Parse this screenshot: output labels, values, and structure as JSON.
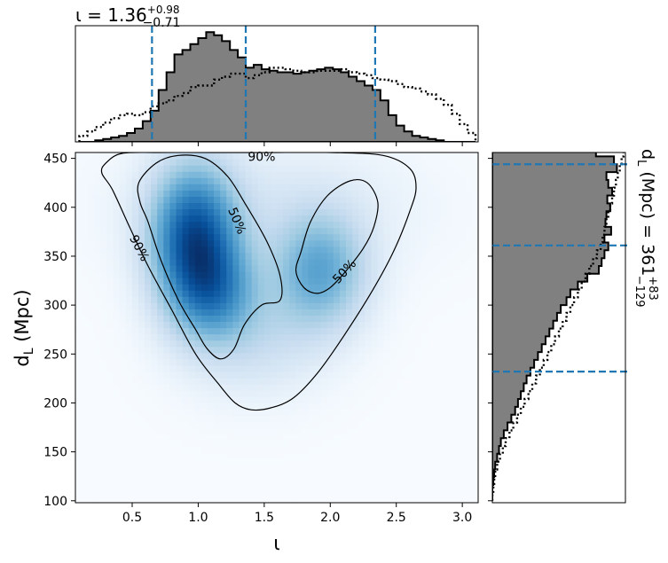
{
  "chart_data": [
    {
      "type": "heatmap",
      "panel": "joint",
      "xlabel": "ι",
      "ylabel": "d_L (Mpc)",
      "xlim": [
        0.07,
        3.12
      ],
      "ylim": [
        98,
        456
      ],
      "x_ticks": [
        "0.5",
        "1.0",
        "1.5",
        "2.0",
        "2.5",
        "3.0"
      ],
      "y_ticks": [
        "100",
        "150",
        "200",
        "250",
        "300",
        "350",
        "400",
        "450"
      ],
      "colormap": "Blues",
      "density_components": [
        {
          "x": 0.97,
          "y": 370,
          "sx": 0.22,
          "sy": 48,
          "w": 1.0
        },
        {
          "x": 1.12,
          "y": 315,
          "sx": 0.22,
          "sy": 35,
          "w": 0.55
        },
        {
          "x": 1.92,
          "y": 335,
          "sx": 0.24,
          "sy": 40,
          "w": 0.55
        },
        {
          "x": 1.42,
          "y": 270,
          "sx": 0.35,
          "sy": 40,
          "w": 0.18
        },
        {
          "x": 1.55,
          "y": 400,
          "sx": 0.7,
          "sy": 45,
          "w": 0.1
        }
      ],
      "contours": [
        {
          "level": "90%",
          "points": [
            [
              0.3,
              445
            ],
            [
              0.42,
              455
            ],
            [
              0.7,
              456
            ],
            [
              1.1,
              456
            ],
            [
              1.5,
              456
            ],
            [
              2.0,
              456
            ],
            [
              2.4,
              453
            ],
            [
              2.6,
              440
            ],
            [
              2.65,
              420
            ],
            [
              2.6,
              395
            ],
            [
              2.48,
              355
            ],
            [
              2.32,
              315
            ],
            [
              2.1,
              268
            ],
            [
              1.9,
              230
            ],
            [
              1.72,
              205
            ],
            [
              1.55,
              195
            ],
            [
              1.4,
              193
            ],
            [
              1.28,
              200
            ],
            [
              1.15,
              220
            ],
            [
              0.98,
              250
            ],
            [
              0.8,
              295
            ],
            [
              0.62,
              340
            ],
            [
              0.48,
              380
            ],
            [
              0.35,
              418
            ],
            [
              0.27,
              435
            ]
          ]
        },
        {
          "level": "50%",
          "points": [
            [
              0.55,
              425
            ],
            [
              0.68,
              445
            ],
            [
              0.85,
              453
            ],
            [
              1.05,
              450
            ],
            [
              1.22,
              432
            ],
            [
              1.35,
              405
            ],
            [
              1.52,
              365
            ],
            [
              1.62,
              330
            ],
            [
              1.62,
              305
            ],
            [
              1.48,
              300
            ],
            [
              1.35,
              280
            ],
            [
              1.27,
              255
            ],
            [
              1.17,
              245
            ],
            [
              1.07,
              255
            ],
            [
              0.98,
              275
            ],
            [
              0.85,
              305
            ],
            [
              0.72,
              345
            ],
            [
              0.62,
              385
            ],
            [
              0.56,
              405
            ]
          ]
        },
        {
          "level": "50%",
          "points": [
            [
              1.78,
              355
            ],
            [
              1.85,
              385
            ],
            [
              1.98,
              412
            ],
            [
              2.15,
              427
            ],
            [
              2.28,
              425
            ],
            [
              2.36,
              405
            ],
            [
              2.33,
              380
            ],
            [
              2.25,
              358
            ],
            [
              2.12,
              335
            ],
            [
              2.0,
              318
            ],
            [
              1.9,
              312
            ],
            [
              1.8,
              318
            ],
            [
              1.74,
              335
            ]
          ]
        }
      ],
      "contour_labels": [
        {
          "text": "90%",
          "x": 1.48,
          "y": 451,
          "rot": 0
        },
        {
          "text": "90%",
          "x": 0.55,
          "y": 358,
          "rot": 62
        },
        {
          "text": "50%",
          "x": 1.29,
          "y": 386,
          "rot": 67
        },
        {
          "text": "50%",
          "x": 2.11,
          "y": 334,
          "rot": -47
        }
      ]
    },
    {
      "type": "histogram",
      "panel": "top-marginal",
      "title_prefix": "ι = 1.36",
      "title_sup": "+0.98",
      "title_sub": "−0.71",
      "xlim": [
        0.07,
        3.12
      ],
      "bin_start": 0.1,
      "bin_width": 0.06,
      "series": [
        {
          "name": "",
          "style": "filled-step",
          "color": "#808080",
          "values": [
            0,
            0,
            1,
            2,
            3,
            4,
            6,
            9,
            14,
            21,
            35,
            47,
            59,
            62,
            66,
            70,
            74,
            72,
            68,
            62,
            57,
            50,
            52,
            49,
            48,
            47,
            47,
            46,
            47,
            48,
            49,
            50,
            49,
            47,
            44,
            41,
            38,
            35,
            28,
            18,
            11,
            7,
            4,
            3,
            2,
            1,
            0,
            0,
            0,
            0
          ]
        },
        {
          "name": "",
          "style": "dotted-step",
          "color": "#000000",
          "values": [
            4,
            7,
            10,
            13,
            16,
            18,
            19,
            18,
            20,
            24,
            26,
            28,
            31,
            33,
            37,
            38,
            38,
            42,
            44,
            46,
            46,
            43,
            45,
            47,
            50,
            50,
            49,
            48,
            47,
            47,
            48,
            48,
            48,
            49,
            47,
            46,
            45,
            43,
            42,
            41,
            39,
            37,
            36,
            34,
            32,
            29,
            25,
            19,
            12,
            6
          ]
        }
      ],
      "vlines": [
        0.65,
        1.36,
        2.34
      ]
    },
    {
      "type": "histogram",
      "panel": "right-marginal",
      "orientation": "horizontal",
      "label_prefix": "d",
      "label_sub": "L",
      "label_mid": " (Mpc) = 361",
      "label_sup": "+83",
      "label_sub2": "−129",
      "ylim": [
        98,
        456
      ],
      "bin_start": 100,
      "bin_width": 8,
      "series": [
        {
          "name": "",
          "style": "filled-step",
          "color": "#808080",
          "values": [
            0,
            0,
            1,
            2,
            3,
            5,
            7,
            9,
            12,
            16,
            20,
            24,
            27,
            30,
            33,
            36,
            40,
            44,
            48,
            52,
            56,
            60,
            64,
            68,
            72,
            78,
            82,
            90,
            100,
            112,
            115,
            118,
            122,
            118,
            125,
            119,
            120,
            124,
            121,
            126,
            122,
            120,
            131,
            128,
            109
          ]
        },
        {
          "name": "",
          "style": "dotted-step",
          "color": "#000000",
          "values": [
            0,
            1,
            2,
            3,
            5,
            8,
            11,
            14,
            18,
            22,
            26,
            30,
            34,
            38,
            42,
            46,
            50,
            54,
            58,
            62,
            66,
            70,
            74,
            78,
            82,
            86,
            90,
            94,
            98,
            102,
            106,
            110,
            114,
            116,
            118,
            120,
            122,
            124,
            126,
            128,
            130,
            132,
            134,
            136,
            138
          ]
        }
      ],
      "hlines": [
        232,
        361,
        444
      ]
    }
  ]
}
